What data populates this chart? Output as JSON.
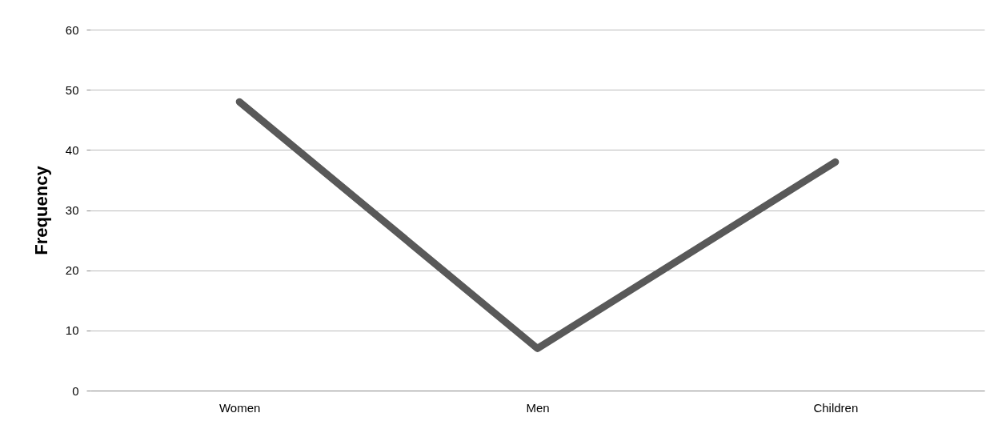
{
  "chart_data": {
    "type": "line",
    "ylabel": "Frequency",
    "categories": [
      "Women",
      "Men",
      "Children"
    ],
    "series": [
      {
        "color": "#595959",
        "values": [
          48,
          7,
          38
        ]
      }
    ],
    "ylim": [
      0,
      60
    ],
    "yticks": [
      0,
      10,
      20,
      30,
      40,
      50,
      60
    ],
    "grid": "y",
    "marker": "none",
    "line_style": "solid"
  }
}
